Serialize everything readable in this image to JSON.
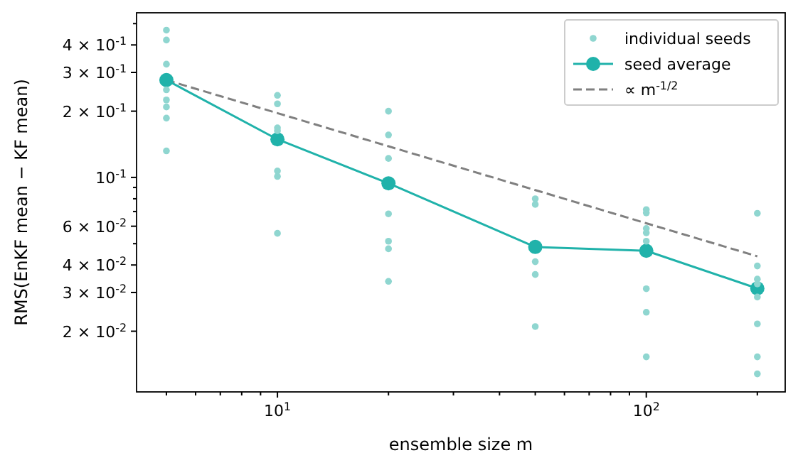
{
  "chart_data": {
    "type": "scatter",
    "xlabel": "ensemble size m",
    "ylabel": "RMS(EnKF mean − KF mean)",
    "log": "xy",
    "xlim": [
      4.15,
      238
    ],
    "ylim": [
      0.0106,
      0.56
    ],
    "xticks": [
      {
        "value": 5,
        "label": null
      },
      {
        "value": 6,
        "label": null
      },
      {
        "value": 7,
        "label": null
      },
      {
        "value": 8,
        "label": null
      },
      {
        "value": 9,
        "label": null
      },
      {
        "value": 10,
        "label": "10$^{1}$"
      },
      {
        "value": 20,
        "label": null
      },
      {
        "value": 30,
        "label": null
      },
      {
        "value": 40,
        "label": null
      },
      {
        "value": 50,
        "label": null
      },
      {
        "value": 60,
        "label": null
      },
      {
        "value": 70,
        "label": null
      },
      {
        "value": 80,
        "label": null
      },
      {
        "value": 90,
        "label": null
      },
      {
        "value": 100,
        "label": "10$^{2}$"
      },
      {
        "value": 200,
        "label": null
      }
    ],
    "yticks": [
      {
        "value": 0.02,
        "label": "2 × 10$^{-2}$"
      },
      {
        "value": 0.03,
        "label": "3 × 10$^{-2}$"
      },
      {
        "value": 0.04,
        "label": "4 × 10$^{-2}$"
      },
      {
        "value": 0.05,
        "label": null
      },
      {
        "value": 0.06,
        "label": "6 × 10$^{-2}$"
      },
      {
        "value": 0.07,
        "label": null
      },
      {
        "value": 0.08,
        "label": null
      },
      {
        "value": 0.09,
        "label": null
      },
      {
        "value": 0.1,
        "label": "10$^{-1}$"
      },
      {
        "value": 0.2,
        "label": "2 × 10$^{-1}$"
      },
      {
        "value": 0.3,
        "label": "3 × 10$^{-1}$"
      },
      {
        "value": 0.4,
        "label": "4 × 10$^{-1}$"
      },
      {
        "value": 0.5,
        "label": null
      }
    ],
    "legend": "top right",
    "series": [
      {
        "name": "individual seeds",
        "marker": "circle",
        "color": "#8fd6d0",
        "x": [
          5,
          5,
          5,
          5,
          5,
          5,
          5,
          5,
          10,
          10,
          10,
          10,
          10,
          10,
          10,
          20,
          20,
          20,
          20,
          20,
          20,
          20,
          50,
          50,
          50,
          50,
          50,
          100,
          100,
          100,
          100,
          100,
          100,
          100,
          100,
          200,
          200,
          200,
          200,
          200,
          200,
          200,
          200
        ],
        "values": [
          0.467,
          0.421,
          0.327,
          0.25,
          0.225,
          0.209,
          0.186,
          0.132,
          0.236,
          0.216,
          0.168,
          0.163,
          0.107,
          0.101,
          0.0557,
          0.2,
          0.156,
          0.122,
          0.0683,
          0.0513,
          0.0474,
          0.0337,
          0.08,
          0.0754,
          0.0414,
          0.0362,
          0.021,
          0.0714,
          0.069,
          0.0586,
          0.056,
          0.0513,
          0.0312,
          0.0244,
          0.0153,
          0.0687,
          0.0396,
          0.0345,
          0.0328,
          0.0286,
          0.0216,
          0.0153,
          0.0128
        ]
      },
      {
        "name": "seed average",
        "type": "line",
        "marker": "circle",
        "line_style": "solid",
        "color": "#20b2aa",
        "x": [
          5,
          10,
          20,
          50,
          100,
          200
        ],
        "values": [
          0.277,
          0.149,
          0.094,
          0.0483,
          0.0464,
          0.0313
        ]
      },
      {
        "name": "∝ m$^{-1/2}$",
        "type": "line",
        "marker": "none",
        "line_style": "dashed",
        "color": "#808080",
        "x": [
          5,
          10,
          20,
          50,
          100,
          200
        ],
        "values": [
          0.277,
          0.196,
          0.1385,
          0.0876,
          0.0619,
          0.0438
        ]
      }
    ]
  }
}
